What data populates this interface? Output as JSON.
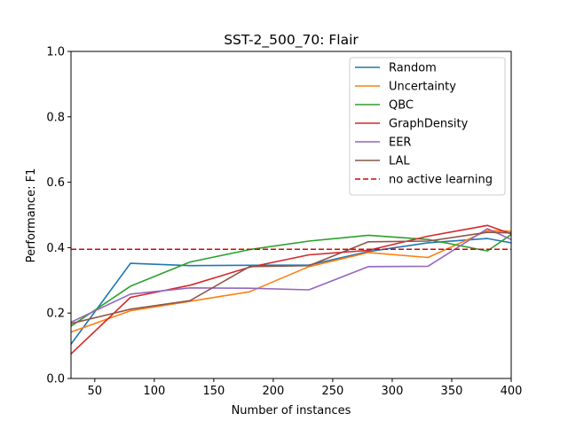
{
  "chart_data": {
    "type": "line",
    "title": "SST-2_500_70: Flair",
    "xlabel": "Number of instances",
    "ylabel": "Performance: F1",
    "xlim": [
      30,
      400
    ],
    "ylim": [
      0.0,
      1.0
    ],
    "xticks": [
      50,
      100,
      150,
      200,
      250,
      300,
      350,
      400
    ],
    "xtick_labels": [
      "50",
      "100",
      "150",
      "200",
      "250",
      "300",
      "350",
      "400"
    ],
    "yticks": [
      0.0,
      0.2,
      0.4,
      0.6,
      0.8,
      1.0
    ],
    "ytick_labels": [
      "0.0",
      "0.2",
      "0.4",
      "0.6",
      "0.8",
      "1.0"
    ],
    "grid": false,
    "legend_position": "top-right",
    "x": [
      30,
      80,
      130,
      180,
      230,
      280,
      330,
      380,
      400
    ],
    "series": [
      {
        "name": "Random",
        "color": "#1f77b4",
        "values": [
          0.105,
          0.352,
          0.345,
          0.346,
          0.347,
          0.388,
          0.415,
          0.428,
          0.415
        ]
      },
      {
        "name": "Uncertainty",
        "color": "#ff7f0e",
        "values": [
          0.142,
          0.207,
          0.236,
          0.265,
          0.342,
          0.385,
          0.37,
          0.452,
          0.45
        ]
      },
      {
        "name": "QBC",
        "color": "#2ca02c",
        "values": [
          0.16,
          0.282,
          0.356,
          0.394,
          0.42,
          0.438,
          0.425,
          0.39,
          0.44
        ]
      },
      {
        "name": "GraphDensity",
        "color": "#d62728",
        "values": [
          0.075,
          0.248,
          0.285,
          0.34,
          0.378,
          0.392,
          0.435,
          0.468,
          0.442
        ]
      },
      {
        "name": "EER",
        "color": "#9467bd",
        "values": [
          0.172,
          0.258,
          0.277,
          0.276,
          0.271,
          0.342,
          0.343,
          0.458,
          0.425
        ]
      },
      {
        "name": "LAL",
        "color": "#8c564b",
        "values": [
          0.168,
          0.212,
          0.238,
          0.342,
          0.345,
          0.418,
          0.42,
          0.447,
          0.445
        ]
      }
    ],
    "baseline": {
      "name": "no active learning",
      "color": "#dd0000",
      "value": 0.395,
      "style": "dashed"
    }
  }
}
